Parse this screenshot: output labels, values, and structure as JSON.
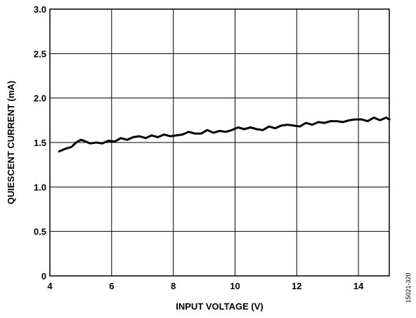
{
  "chart_data": {
    "type": "line",
    "xlabel": "INPUT VOLTAGE (V)",
    "ylabel": "QUIESCENT CURRENT (mA)",
    "xlim": [
      4,
      15
    ],
    "ylim": [
      0,
      3.0
    ],
    "x_ticks": [
      4,
      6,
      8,
      10,
      12,
      14
    ],
    "x_tick_labels": [
      "4",
      "6",
      "8",
      "10",
      "12",
      "14"
    ],
    "y_ticks": [
      0,
      0.5,
      1.0,
      1.5,
      2.0,
      2.5,
      3.0
    ],
    "y_tick_labels": [
      "0",
      "0.5",
      "1.0",
      "1.5",
      "2.0",
      "2.5",
      "3.0"
    ],
    "grid": true,
    "side_note": "15021-320",
    "series": [
      {
        "color": "#000000",
        "x": [
          4.3,
          4.5,
          4.7,
          4.85,
          5.0,
          5.1,
          5.3,
          5.5,
          5.7,
          5.9,
          6.1,
          6.3,
          6.5,
          6.7,
          6.9,
          7.1,
          7.3,
          7.5,
          7.7,
          7.9,
          8.1,
          8.3,
          8.5,
          8.7,
          8.9,
          9.1,
          9.3,
          9.5,
          9.7,
          9.9,
          10.1,
          10.3,
          10.5,
          10.7,
          10.9,
          11.1,
          11.3,
          11.5,
          11.7,
          11.9,
          12.1,
          12.3,
          12.5,
          12.7,
          12.9,
          13.1,
          13.3,
          13.5,
          13.7,
          13.9,
          14.1,
          14.3,
          14.5,
          14.7,
          14.9,
          15.0
        ],
        "y": [
          1.4,
          1.43,
          1.45,
          1.5,
          1.53,
          1.52,
          1.49,
          1.5,
          1.49,
          1.52,
          1.51,
          1.55,
          1.53,
          1.56,
          1.57,
          1.55,
          1.58,
          1.56,
          1.59,
          1.57,
          1.58,
          1.59,
          1.62,
          1.6,
          1.6,
          1.64,
          1.61,
          1.63,
          1.62,
          1.64,
          1.67,
          1.65,
          1.67,
          1.65,
          1.64,
          1.68,
          1.66,
          1.69,
          1.7,
          1.69,
          1.68,
          1.72,
          1.7,
          1.73,
          1.72,
          1.74,
          1.74,
          1.73,
          1.75,
          1.76,
          1.76,
          1.74,
          1.78,
          1.75,
          1.78,
          1.76
        ]
      }
    ]
  }
}
